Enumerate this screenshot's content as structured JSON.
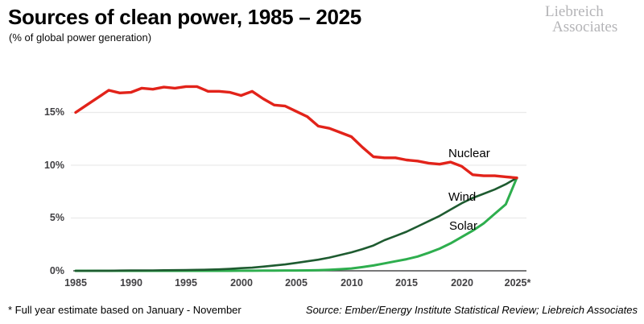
{
  "header": {
    "title": "Sources of clean power, 1985 – 2025",
    "subtitle": "(% of global power generation)",
    "logo_line1": "Liebreich",
    "logo_line2": "Associates"
  },
  "footer": {
    "footnote": "* Full year estimate based on January - November",
    "source": "Source: Ember/Energy Institute Statistical Review; Liebreich Associates"
  },
  "chart_data": {
    "type": "line",
    "title": "Sources of clean power, 1985 – 2025",
    "ylabel": "% of global power generation",
    "xlabel": "",
    "xlim": [
      1985,
      2025
    ],
    "ylim": [
      0,
      18.5
    ],
    "grid": "horizontal-light",
    "legend": "inline-labels-near-lines",
    "grid_color": "#eaeaea",
    "axis_color": "#4b4b4d",
    "tick_label_color": "#414043",
    "x": [
      1985,
      1986,
      1987,
      1988,
      1989,
      1990,
      1991,
      1992,
      1993,
      1994,
      1995,
      1996,
      1997,
      1998,
      1999,
      2000,
      2001,
      2002,
      2003,
      2004,
      2005,
      2006,
      2007,
      2008,
      2009,
      2010,
      2011,
      2012,
      2013,
      2014,
      2015,
      2016,
      2017,
      2018,
      2019,
      2020,
      2021,
      2022,
      2023,
      2024,
      2025
    ],
    "x_tick_labels": [
      "1985",
      "1990",
      "1995",
      "2000",
      "2005",
      "2010",
      "2015",
      "2020",
      "2025*"
    ],
    "y_tick_labels": [
      "15%",
      "10%",
      "5%",
      "0%"
    ],
    "y_ticks_pct": [
      15,
      10,
      5,
      0
    ],
    "series": [
      {
        "name": "Nuclear",
        "color": "#e2231a",
        "stroke_width": 3.4,
        "z": 3,
        "values": [
          15.0,
          15.7,
          16.4,
          17.1,
          16.85,
          16.9,
          17.3,
          17.2,
          17.4,
          17.3,
          17.45,
          17.45,
          17.0,
          17.0,
          16.9,
          16.6,
          17.0,
          16.3,
          15.7,
          15.6,
          15.1,
          14.6,
          13.7,
          13.5,
          13.1,
          12.7,
          11.7,
          10.8,
          10.7,
          10.7,
          10.5,
          10.4,
          10.2,
          10.1,
          10.3,
          9.9,
          9.1,
          9.0,
          9.0,
          8.9,
          8.8
        ]
      },
      {
        "name": "Wind",
        "color": "#1e5b30",
        "stroke_width": 2.6,
        "z": 2,
        "values": [
          0.0,
          0.0,
          0.01,
          0.01,
          0.02,
          0.03,
          0.03,
          0.04,
          0.05,
          0.06,
          0.07,
          0.09,
          0.11,
          0.14,
          0.18,
          0.25,
          0.3,
          0.4,
          0.5,
          0.6,
          0.75,
          0.9,
          1.05,
          1.25,
          1.5,
          1.75,
          2.05,
          2.4,
          2.9,
          3.3,
          3.7,
          4.2,
          4.7,
          5.2,
          5.8,
          6.4,
          6.9,
          7.3,
          7.7,
          8.2,
          8.8
        ]
      },
      {
        "name": "Solar",
        "color": "#2eae4e",
        "stroke_width": 3.0,
        "z": 1,
        "values": [
          0.0,
          0.0,
          0.0,
          0.0,
          0.0,
          0.0,
          0.0,
          0.0,
          0.0,
          0.0,
          0.0,
          0.0,
          0.0,
          0.0,
          0.0,
          0.01,
          0.01,
          0.02,
          0.02,
          0.03,
          0.03,
          0.04,
          0.06,
          0.1,
          0.15,
          0.22,
          0.35,
          0.5,
          0.7,
          0.9,
          1.1,
          1.35,
          1.7,
          2.1,
          2.6,
          3.2,
          3.8,
          4.5,
          5.4,
          6.3,
          8.8
        ]
      }
    ]
  }
}
